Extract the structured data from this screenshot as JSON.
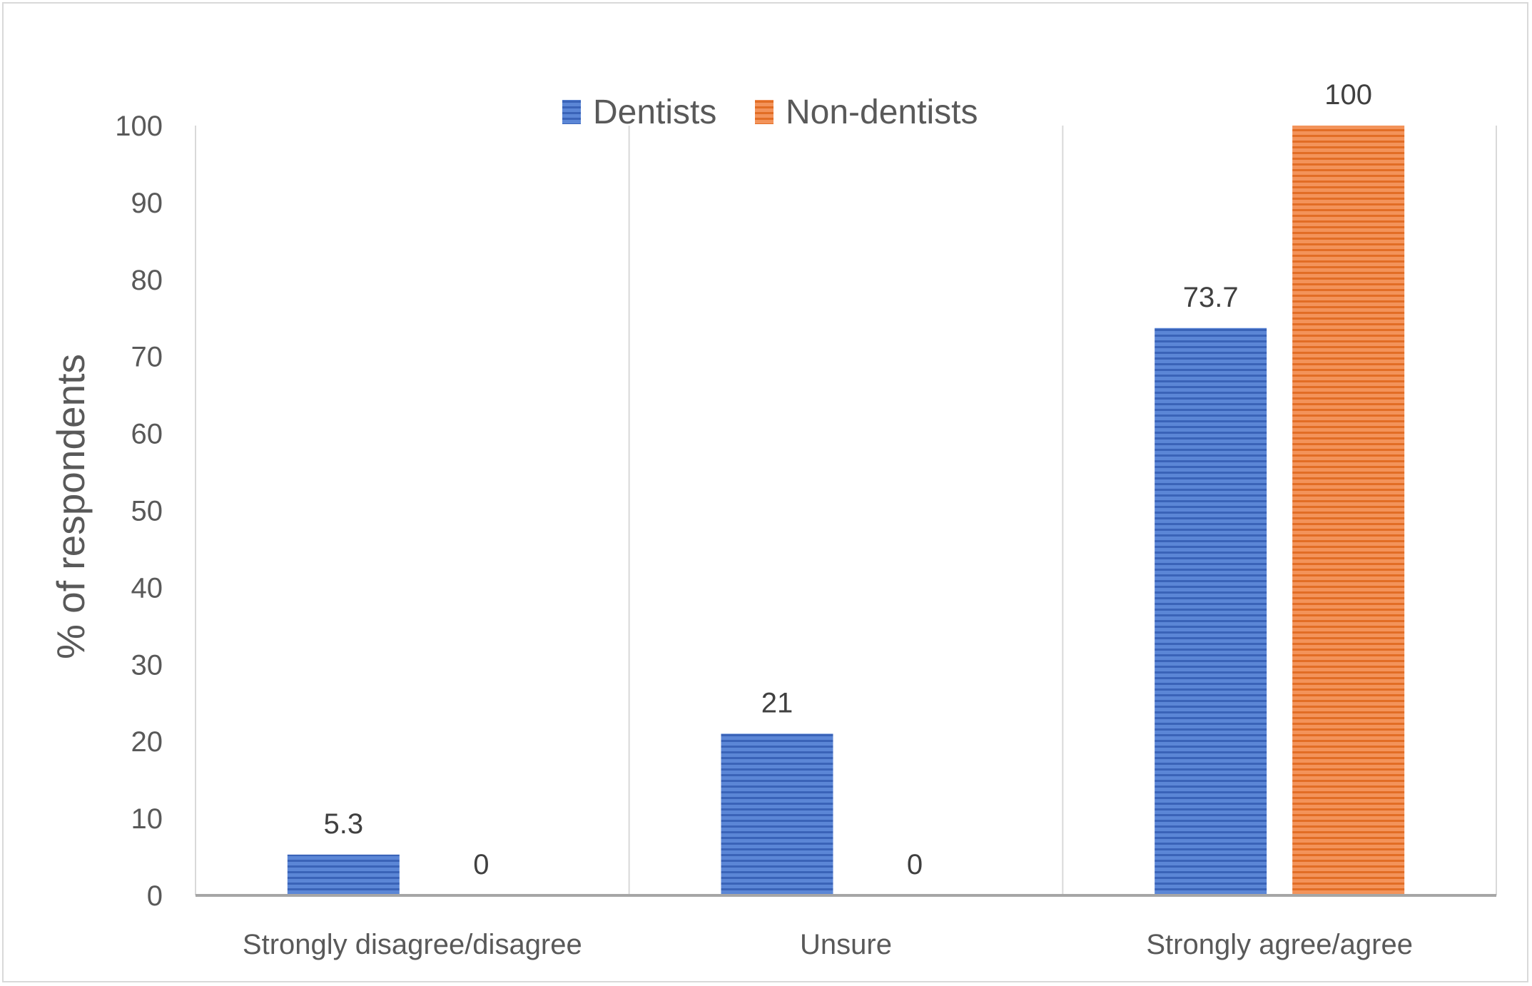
{
  "chart_data": {
    "type": "bar",
    "title": "",
    "xlabel": "",
    "ylabel": "% of respondents",
    "ylim": [
      0,
      100
    ],
    "yticks": [
      0,
      10,
      20,
      30,
      40,
      50,
      60,
      70,
      80,
      90,
      100
    ],
    "categories": [
      "Strongly disagree/disagree",
      "Unsure",
      "Strongly agree/agree"
    ],
    "series": [
      {
        "name": "Dentists",
        "values": [
          5.3,
          21,
          73.7
        ],
        "labels": [
          "5.3",
          "21",
          "73.7"
        ],
        "color": "#4472c4"
      },
      {
        "name": "Non-dentists",
        "values": [
          0,
          0,
          100
        ],
        "labels": [
          "0",
          "0",
          "100"
        ],
        "color": "#ed7d31"
      }
    ],
    "legend_position": "top",
    "grid": "vertical category separators"
  }
}
